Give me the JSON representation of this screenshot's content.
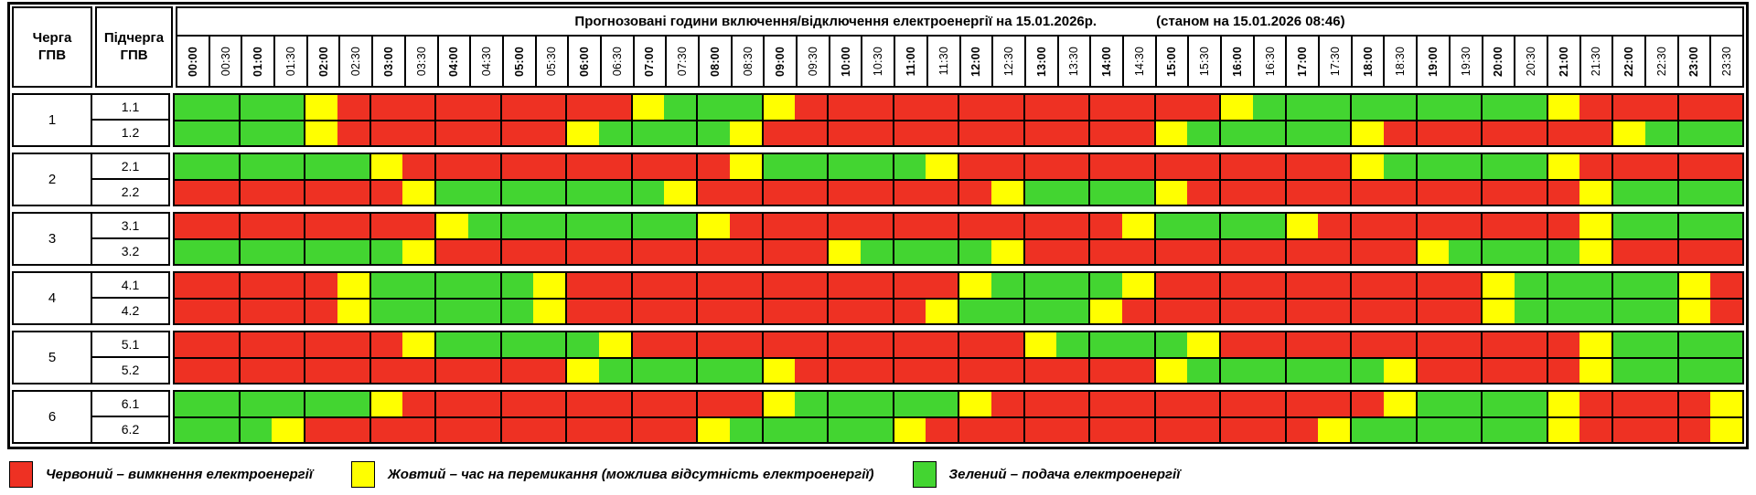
{
  "header": {
    "queue_col": "Черга\nГПВ",
    "subqueue_col": "Підчерга\nГПВ",
    "title": "Прогнозовані години включення/відключення електроенергії на 15.01.2026р.",
    "as_of": "(станом на 15.01.2026 08:46)"
  },
  "status_colors": {
    "R": "#EE3123",
    "Y": "#FFFF00",
    "G": "#43D531"
  },
  "chart_data": {
    "type": "heatmap",
    "title": "Прогнозовані години включення/відключення електроенергії на 15.01.2026р.",
    "subtitle": "(станом на 15.01.2026 08:46)",
    "x_labels": [
      "00:00",
      "00:30",
      "01:00",
      "01:30",
      "02:00",
      "02:30",
      "03:00",
      "03:30",
      "04:00",
      "04:30",
      "05:00",
      "05:30",
      "06:00",
      "06:30",
      "07:00",
      "07:30",
      "08:00",
      "08:30",
      "09:00",
      "09:30",
      "10:00",
      "10:30",
      "11:00",
      "11:30",
      "12:00",
      "12:30",
      "13:00",
      "13:30",
      "14:00",
      "14:30",
      "15:00",
      "15:30",
      "16:00",
      "16:30",
      "17:00",
      "17:30",
      "18:00",
      "18:30",
      "19:00",
      "19:30",
      "20:00",
      "20:30",
      "21:00",
      "21:30",
      "22:00",
      "22:30",
      "23:00",
      "23:30"
    ],
    "value_meaning": {
      "R": "вимкнення електроенергії",
      "Y": "час на перемикання",
      "G": "подача електроенергії"
    },
    "groups": [
      {
        "queue": "1",
        "rows": [
          {
            "label": "1.1",
            "slots": "GGGGYRRRRRRRRRYGGGYRRRRRRRRRRRRRYGGGGGGGGGYRRRRR"
          },
          {
            "label": "1.2",
            "slots": "GGGGYRRRRRRRYGGGGYRRRRRRRRRRRRYGGGGGYRRRRRRRYGGG"
          }
        ]
      },
      {
        "queue": "2",
        "rows": [
          {
            "label": "2.1",
            "slots": "GGGGGGYRRRRRRRRRRYGGGGGYRRRRRRRRRRRRYGGGGGYRRRRR"
          },
          {
            "label": "2.2",
            "slots": "RRRRRRRYGGGGGGGYRRRRRRRRRYGGGGYRRRRRRRRRRRRYGGGG"
          }
        ]
      },
      {
        "queue": "3",
        "rows": [
          {
            "label": "3.1",
            "slots": "RRRRRRRRYGGGGGGGYRRRRRRRRRRRRYGGGGYRRRRRRRRYGGGG"
          },
          {
            "label": "3.2",
            "slots": "GGGGGGGYRRRRRRRRRRRRYGGGGYRRRRRRRRRRRRYGGGGYRRRR"
          }
        ]
      },
      {
        "queue": "4",
        "rows": [
          {
            "label": "4.1",
            "slots": "RRRRRYGGGGGYRRRRRRRRRRRRYGGGGYRRRRRRRRRRYGGGGGYR"
          },
          {
            "label": "4.2",
            "slots": "RRRRRYGGGGGYRRRRRRRRRRRYGGGGYRRRRRRRRRRRYGGGGGYR"
          }
        ]
      },
      {
        "queue": "5",
        "rows": [
          {
            "label": "5.1",
            "slots": "RRRRRRRYGGGGGYRRRRRRRRRRRRYGGGGYRRRRRRRRRRRYGGGG"
          },
          {
            "label": "5.2",
            "slots": "RRRRRRRRRRRRYGGGGGYRRRRRRRRRRRYGGGGGGYRRRRRYGGGG"
          }
        ]
      },
      {
        "queue": "6",
        "rows": [
          {
            "label": "6.1",
            "slots": "GGGGGGYRRRRRRRRRRRYGGGGGYRRRRRRRRRRRRYGGGGYRRRRY"
          },
          {
            "label": "6.2",
            "slots": "GGGYRRRRRRRRRRRRYGGGGGYRRRRRRRRRRRRYGGGGGGYRRRRY"
          }
        ]
      }
    ]
  },
  "legend": [
    {
      "key": "R",
      "color": "#EE3123",
      "label": "Червоний – вимкнення електроенергії"
    },
    {
      "key": "Y",
      "color": "#FFFF00",
      "label": "Жовтий – час на перемикання (можлива відсутність електроенергії)"
    },
    {
      "key": "G",
      "color": "#43D531",
      "label": "Зелений – подача електроенергії"
    }
  ]
}
